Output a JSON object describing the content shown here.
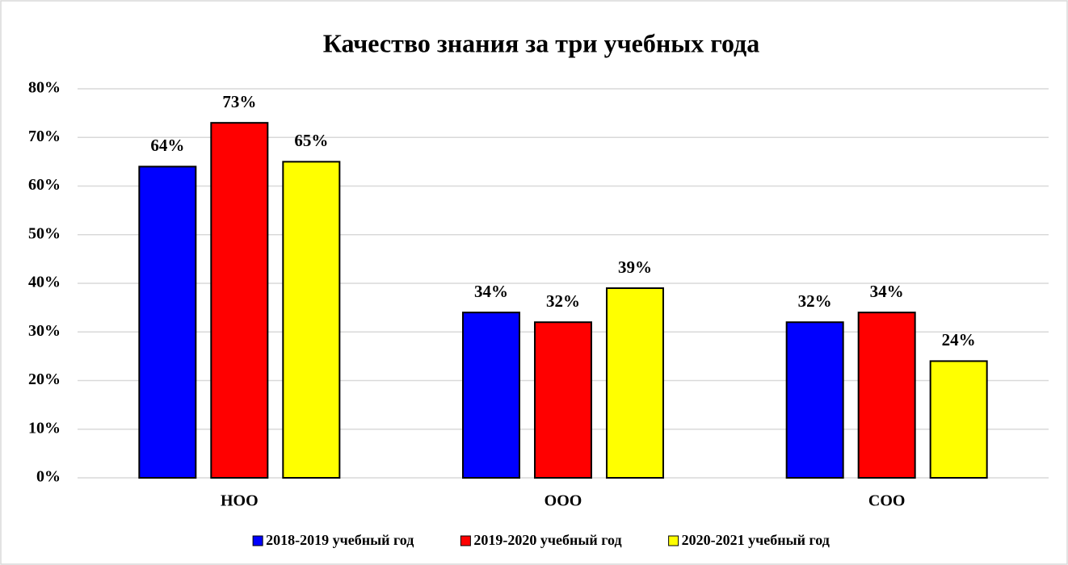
{
  "chart_data": {
    "type": "bar",
    "title": "Качество знания за три учебных года",
    "categories": [
      "НОО",
      "ООО",
      "СОО"
    ],
    "series": [
      {
        "name": "2018-2019 учебный год",
        "color": "#0000ff",
        "values": [
          64,
          34,
          32
        ],
        "value_labels": [
          "64%",
          "34%",
          "32%"
        ]
      },
      {
        "name": "2019-2020 учебный год",
        "color": "#ff0000",
        "values": [
          73,
          32,
          34
        ],
        "value_labels": [
          "73%",
          "32%",
          "34%"
        ]
      },
      {
        "name": "2020-2021 учебный год",
        "color": "#ffff00",
        "values": [
          65,
          39,
          24
        ],
        "value_labels": [
          "65%",
          "39%",
          "24%"
        ]
      }
    ],
    "ylim": [
      0,
      80
    ],
    "yticks": [
      {
        "value": 0,
        "label": "0%"
      },
      {
        "value": 10,
        "label": "10%"
      },
      {
        "value": 20,
        "label": "20%"
      },
      {
        "value": 30,
        "label": "30%"
      },
      {
        "value": 40,
        "label": "40%"
      },
      {
        "value": 50,
        "label": "50%"
      },
      {
        "value": 60,
        "label": "60%"
      },
      {
        "value": 70,
        "label": "70%"
      },
      {
        "value": 80,
        "label": "80%"
      }
    ],
    "grid": true,
    "legend": "bottom"
  }
}
